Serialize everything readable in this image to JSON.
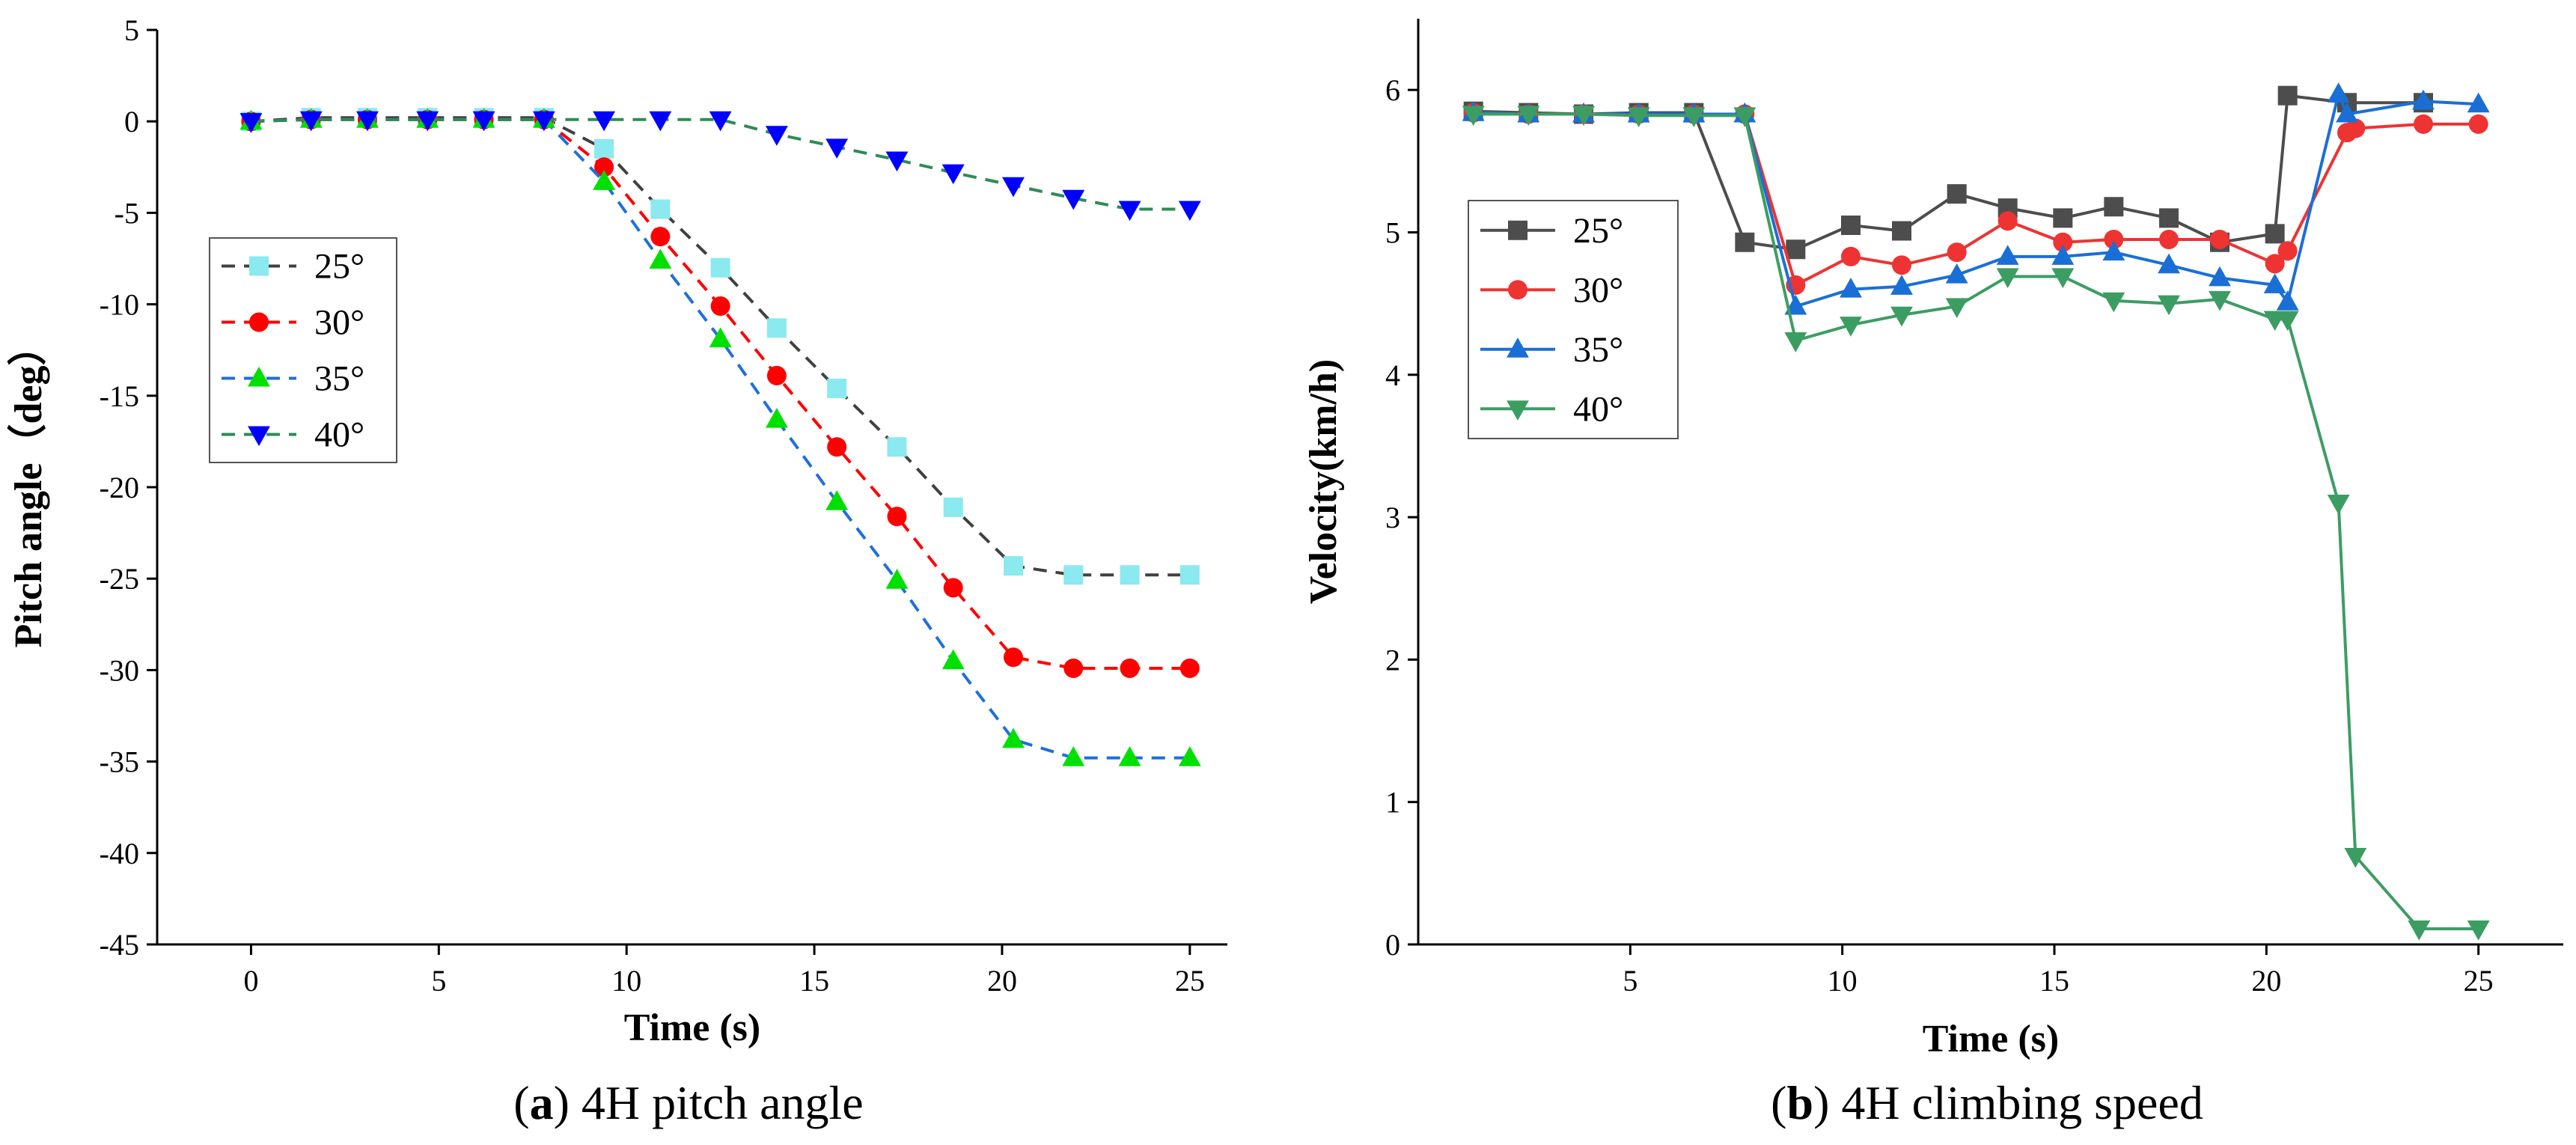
{
  "chart_data": [
    {
      "type": "line",
      "caption_prefix": "(",
      "caption_letter": "a",
      "caption_text": ") 4H pitch angle",
      "xlabel": "Time (s)",
      "ylabel": "Pitch angle（deg）",
      "xlim": [
        -2.5,
        26
      ],
      "ylim": [
        -45,
        5
      ],
      "xticks": [
        0,
        5,
        10,
        15,
        20,
        25
      ],
      "yticks": [
        5,
        0,
        -5,
        -10,
        -15,
        -20,
        -25,
        -30,
        -35,
        -40,
        -45
      ],
      "grid": false,
      "legend_position": "left",
      "series": [
        {
          "name": "25°",
          "marker": "square",
          "line_color": "#404040",
          "marker_color": "#8be9f0",
          "x": [
            0,
            1.6,
            3.1,
            4.7,
            6.2,
            7.8,
            9.4,
            10.9,
            12.5,
            14.0,
            15.6,
            17.2,
            18.7,
            20.3,
            21.9,
            23.4,
            25.0
          ],
          "y": [
            0,
            0.2,
            0.2,
            0.2,
            0.2,
            0.2,
            -1.5,
            -4.8,
            -8.0,
            -11.3,
            -14.6,
            -17.8,
            -21.1,
            -24.3,
            -24.8,
            -24.8,
            -24.8
          ]
        },
        {
          "name": "30°",
          "marker": "circle",
          "line_color": "#ff0000",
          "marker_color": "#ff0000",
          "x": [
            0,
            1.6,
            3.1,
            4.7,
            6.2,
            7.8,
            9.4,
            10.9,
            12.5,
            14.0,
            15.6,
            17.2,
            18.7,
            20.3,
            21.9,
            23.4,
            25.0
          ],
          "y": [
            0,
            0.1,
            0.1,
            0.1,
            0.1,
            0.1,
            -2.5,
            -6.3,
            -10.1,
            -13.9,
            -17.8,
            -21.6,
            -25.5,
            -29.3,
            -29.9,
            -29.9,
            -29.9
          ]
        },
        {
          "name": "35°",
          "marker": "triangle-up",
          "line_color": "#1f6fdc",
          "marker_color": "#00e000",
          "x": [
            0,
            1.6,
            3.1,
            4.7,
            6.2,
            7.8,
            9.4,
            10.9,
            12.5,
            14.0,
            15.6,
            17.2,
            18.7,
            20.3,
            21.9,
            23.4,
            25.0
          ],
          "y": [
            0,
            0.1,
            0.1,
            0.1,
            0.1,
            0.1,
            -3.3,
            -7.6,
            -11.9,
            -16.3,
            -20.8,
            -25.1,
            -29.5,
            -33.8,
            -34.8,
            -34.8,
            -34.8
          ]
        },
        {
          "name": "40°",
          "marker": "triangle-down",
          "line_color": "#2e8b57",
          "marker_color": "#0000ff",
          "x": [
            0,
            1.6,
            3.1,
            4.7,
            6.2,
            7.8,
            9.4,
            10.9,
            12.5,
            14.0,
            15.6,
            17.2,
            18.7,
            20.3,
            21.9,
            23.4,
            25.0
          ],
          "y": [
            0,
            0.1,
            0.1,
            0.1,
            0.1,
            0.1,
            0.1,
            0.1,
            0.1,
            -0.7,
            -1.4,
            -2.1,
            -2.8,
            -3.5,
            -4.2,
            -4.8,
            -4.8
          ]
        }
      ]
    },
    {
      "type": "line",
      "caption_prefix": "(",
      "caption_letter": "b",
      "caption_text": ") 4H climbing speed",
      "xlabel": "Time (s)",
      "ylabel": "Velocity(km/h)",
      "xlim": [
        0,
        27
      ],
      "ylim": [
        0,
        6.5
      ],
      "xticks": [
        5,
        10,
        15,
        20,
        25
      ],
      "yticks": [
        0,
        1,
        2,
        3,
        4,
        5,
        6
      ],
      "grid": false,
      "legend_position": "left",
      "series": [
        {
          "name": "25°",
          "marker": "square",
          "line_color": "#4d4d4d",
          "marker_color": "#4d4d4d",
          "x": [
            1.3,
            2.6,
            3.9,
            5.2,
            6.5,
            7.7,
            8.9,
            10.2,
            11.4,
            12.7,
            13.9,
            15.2,
            16.4,
            17.7,
            18.9,
            20.2,
            20.5,
            21.9,
            23.7,
            25.0
          ],
          "y": [
            5.85,
            5.84,
            5.83,
            5.84,
            5.84,
            4.93,
            4.88,
            5.05,
            5.01,
            5.27,
            5.17,
            5.1,
            5.18,
            5.1,
            4.93,
            4.99,
            5.96,
            5.91,
            5.91,
            null
          ]
        },
        {
          "name": "30°",
          "marker": "circle",
          "line_color": "#ee3333",
          "marker_color": "#ee3333",
          "x": [
            1.3,
            2.6,
            3.9,
            5.2,
            6.5,
            7.7,
            8.9,
            10.2,
            11.4,
            12.7,
            13.9,
            15.2,
            16.4,
            17.7,
            18.9,
            20.2,
            20.5,
            21.9,
            22.1,
            23.7,
            25.0
          ],
          "y": [
            5.84,
            5.83,
            5.83,
            5.83,
            5.83,
            5.83,
            4.63,
            4.83,
            4.77,
            4.86,
            5.08,
            4.93,
            4.95,
            4.95,
            4.95,
            4.78,
            4.87,
            5.7,
            5.73,
            5.76,
            5.76
          ]
        },
        {
          "name": "35°",
          "marker": "triangle-up",
          "line_color": "#1a6fd6",
          "marker_color": "#1a6fd6",
          "x": [
            1.3,
            2.6,
            3.9,
            5.2,
            6.5,
            7.7,
            8.9,
            10.2,
            11.4,
            12.7,
            13.9,
            15.2,
            16.4,
            17.7,
            18.9,
            20.2,
            20.5,
            21.7,
            21.9,
            23.7,
            25.0
          ],
          "y": [
            5.84,
            5.83,
            5.83,
            5.83,
            5.83,
            5.83,
            4.48,
            4.6,
            4.62,
            4.7,
            4.83,
            4.83,
            4.86,
            4.77,
            4.68,
            4.63,
            4.51,
            5.97,
            5.83,
            5.92,
            5.9
          ]
        },
        {
          "name": "40°",
          "marker": "triangle-down",
          "line_color": "#3c9d63",
          "marker_color": "#3c9d63",
          "x": [
            1.3,
            2.6,
            3.9,
            5.2,
            6.5,
            7.7,
            8.9,
            10.2,
            11.4,
            12.7,
            13.9,
            15.2,
            16.4,
            17.7,
            18.9,
            20.2,
            20.5,
            21.7,
            22.1,
            23.6,
            25.0
          ],
          "y": [
            5.83,
            5.83,
            5.83,
            5.82,
            5.82,
            5.82,
            4.24,
            4.35,
            4.42,
            4.48,
            4.69,
            4.69,
            4.52,
            4.5,
            4.53,
            4.39,
            4.39,
            3.1,
            0.62,
            0.11,
            0.11
          ]
        }
      ]
    }
  ]
}
